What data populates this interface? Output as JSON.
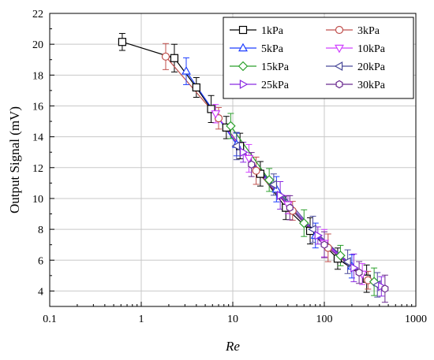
{
  "chart_data": {
    "type": "line",
    "xlabel": "Re",
    "ylabel": "Output Signal (mV)",
    "xscale": "log",
    "xlim": [
      0.1,
      1000
    ],
    "ylim": [
      3,
      22
    ],
    "grid": true,
    "legend_position": "top-right",
    "x_ticks": [
      0.1,
      1,
      10,
      100,
      1000
    ],
    "x_tick_labels": [
      "0.1",
      "1",
      "10",
      "100",
      "1000"
    ],
    "y_ticks": [
      4,
      6,
      8,
      10,
      12,
      14,
      16,
      18,
      20,
      22
    ],
    "y_tick_labels": [
      "4",
      "6",
      "8",
      "10",
      "12",
      "14",
      "16",
      "18",
      "20",
      "22"
    ],
    "series": [
      {
        "name": "1kPa",
        "color": "#000000",
        "marker": "square",
        "x": [
          0.62,
          2.3,
          4.0,
          5.8,
          8.5,
          12,
          20,
          38,
          70,
          140,
          290
        ],
        "y": [
          20.15,
          19.1,
          17.2,
          15.8,
          14.6,
          13.4,
          11.6,
          9.4,
          7.9,
          6.1,
          4.8
        ]
      },
      {
        "name": "3kPa",
        "color": "#c0504d",
        "marker": "circle",
        "x": [
          1.85,
          7.0,
          18,
          45,
          110,
          300
        ],
        "y": [
          19.2,
          15.2,
          11.8,
          9.2,
          6.8,
          4.7
        ]
      },
      {
        "name": "5kPa",
        "color": "#1f3fff",
        "marker": "triangle-up",
        "x": [
          3.1,
          11,
          30,
          80,
          200
        ],
        "y": [
          18.25,
          13.5,
          10.6,
          7.6,
          5.6
        ]
      },
      {
        "name": "10kPa",
        "color": "#d040ff",
        "marker": "triangle-down",
        "x": [
          6.5,
          15,
          40,
          100,
          260
        ],
        "y": [
          15.5,
          12.6,
          9.6,
          7.1,
          5.1
        ]
      },
      {
        "name": "15kPa",
        "color": "#2ca02c",
        "marker": "diamond",
        "x": [
          9.5,
          25,
          60,
          150,
          350
        ],
        "y": [
          14.7,
          11.2,
          8.4,
          6.3,
          4.6
        ]
      },
      {
        "name": "20kPa",
        "color": "#4a4a9a",
        "marker": "triangle-left",
        "x": [
          11,
          28,
          75,
          180,
          380
        ],
        "y": [
          13.4,
          10.9,
          8.0,
          5.9,
          4.4
        ]
      },
      {
        "name": "25kPa",
        "color": "#8a2be2",
        "marker": "triangle-right",
        "x": [
          13,
          33,
          85,
          210,
          420
        ],
        "y": [
          13.0,
          10.2,
          7.6,
          5.5,
          4.3
        ]
      },
      {
        "name": "30kPa",
        "color": "#6b2a8f",
        "marker": "hexagon",
        "x": [
          16,
          42,
          100,
          240,
          460
        ],
        "y": [
          12.2,
          9.4,
          7.0,
          5.2,
          4.15
        ]
      }
    ]
  }
}
